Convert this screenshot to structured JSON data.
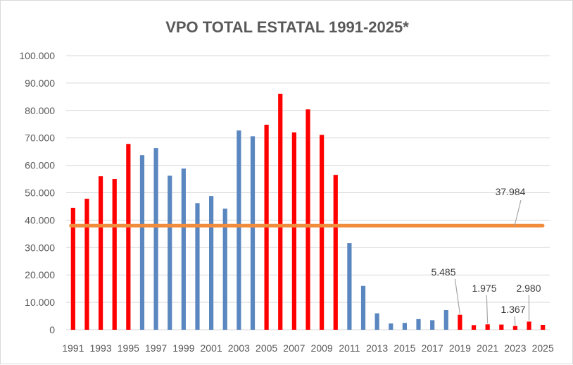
{
  "chart_data": {
    "type": "bar",
    "title": "VPO TOTAL ESTATAL 1991-2025*",
    "xlabel": "",
    "ylabel": "",
    "ylim": [
      0,
      100000
    ],
    "y_ticks": [
      "0",
      "10.000",
      "20.000",
      "30.000",
      "40.000",
      "50.000",
      "60.000",
      "70.000",
      "80.000",
      "90.000",
      "100.000"
    ],
    "grid": true,
    "legend": "none",
    "categories": [
      "1991",
      "1992",
      "1993",
      "1994",
      "1995",
      "1996",
      "1997",
      "1998",
      "1999",
      "2000",
      "2001",
      "2002",
      "2003",
      "2004",
      "2005",
      "2006",
      "2007",
      "2008",
      "2009",
      "2010",
      "2011",
      "2012",
      "2013",
      "2014",
      "2015",
      "2016",
      "2017",
      "2018",
      "2019",
      "2020",
      "2021",
      "2022",
      "2023",
      "2024",
      "2025"
    ],
    "x_tick_labels": [
      "1991",
      "1993",
      "1995",
      "1997",
      "1999",
      "2001",
      "2003",
      "2005",
      "2007",
      "2009",
      "2011",
      "2013",
      "2015",
      "2017",
      "2019",
      "2021",
      "2023",
      "2025"
    ],
    "values": [
      44500,
      47800,
      56000,
      55000,
      67800,
      63700,
      66300,
      56200,
      58800,
      46200,
      48800,
      44200,
      72700,
      70600,
      74800,
      86100,
      72000,
      80400,
      71100,
      56500,
      31600,
      16000,
      6000,
      2300,
      2500,
      3900,
      3500,
      7200,
      5485,
      1700,
      1975,
      1900,
      1367,
      2980,
      1800
    ],
    "bar_colors": [
      "red",
      "red",
      "red",
      "red",
      "red",
      "blue",
      "blue",
      "blue",
      "blue",
      "blue",
      "blue",
      "blue",
      "blue",
      "blue",
      "red",
      "red",
      "red",
      "red",
      "red",
      "red",
      "blue",
      "blue",
      "blue",
      "blue",
      "blue",
      "blue",
      "blue",
      "blue",
      "red",
      "red",
      "red",
      "red",
      "red",
      "red",
      "red"
    ],
    "reference_line": {
      "value": 37984,
      "label": "37.984"
    },
    "annotations": [
      {
        "category": "2019",
        "label": "5.485"
      },
      {
        "category": "2021",
        "label": "1.975"
      },
      {
        "category": "2023",
        "label": "1.367"
      },
      {
        "category": "2024",
        "label": "2.980"
      }
    ],
    "colors": {
      "red": "#ff0000",
      "blue": "#5b87c0",
      "reference": "#f08c3c",
      "grid": "#d9d9d9",
      "text": "#595959",
      "leader": "#a6a6a6"
    }
  }
}
